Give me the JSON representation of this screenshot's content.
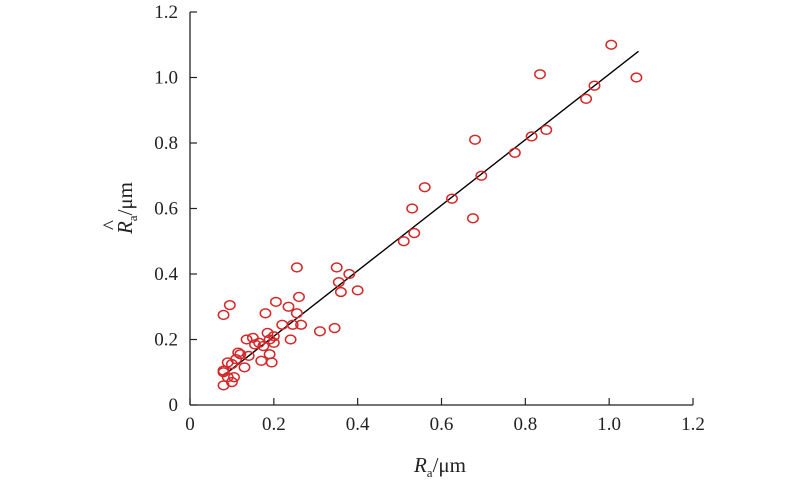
{
  "chart_data": {
    "type": "scatter",
    "xlabel": {
      "main": "R",
      "sub": "a",
      "unit": "/μm"
    },
    "ylabel": {
      "main": "R",
      "hat": "^",
      "sub": "a",
      "unit": "/μm"
    },
    "xlim": [
      0,
      1.2
    ],
    "ylim": [
      0,
      1.2
    ],
    "xticks": [
      "0",
      "0.2",
      "0.4",
      "0.6",
      "0.8",
      "1.0",
      "1.2"
    ],
    "yticks": [
      "0",
      "0.2",
      "0.4",
      "0.6",
      "0.8",
      "1.0",
      "1.2"
    ],
    "grid": false,
    "marker_color": "#d62728",
    "line_color": "#000000",
    "fit_line": {
      "x": [
        0.08,
        1.07
      ],
      "y": [
        0.09,
        1.08
      ]
    },
    "points": [
      [
        0.08,
        0.06
      ],
      [
        0.08,
        0.1
      ],
      [
        0.08,
        0.105
      ],
      [
        0.08,
        0.275
      ],
      [
        0.09,
        0.085
      ],
      [
        0.09,
        0.13
      ],
      [
        0.095,
        0.305
      ],
      [
        0.1,
        0.07
      ],
      [
        0.1,
        0.125
      ],
      [
        0.105,
        0.085
      ],
      [
        0.11,
        0.14
      ],
      [
        0.115,
        0.16
      ],
      [
        0.12,
        0.155
      ],
      [
        0.13,
        0.115
      ],
      [
        0.135,
        0.2
      ],
      [
        0.14,
        0.15
      ],
      [
        0.15,
        0.205
      ],
      [
        0.155,
        0.185
      ],
      [
        0.165,
        0.19
      ],
      [
        0.17,
        0.135
      ],
      [
        0.175,
        0.18
      ],
      [
        0.18,
        0.28
      ],
      [
        0.185,
        0.22
      ],
      [
        0.19,
        0.2
      ],
      [
        0.19,
        0.155
      ],
      [
        0.195,
        0.13
      ],
      [
        0.2,
        0.21
      ],
      [
        0.2,
        0.19
      ],
      [
        0.205,
        0.315
      ],
      [
        0.22,
        0.245
      ],
      [
        0.235,
        0.3
      ],
      [
        0.24,
        0.2
      ],
      [
        0.245,
        0.245
      ],
      [
        0.255,
        0.28
      ],
      [
        0.255,
        0.42
      ],
      [
        0.26,
        0.33
      ],
      [
        0.265,
        0.245
      ],
      [
        0.31,
        0.225
      ],
      [
        0.345,
        0.235
      ],
      [
        0.35,
        0.42
      ],
      [
        0.355,
        0.375
      ],
      [
        0.36,
        0.345
      ],
      [
        0.38,
        0.4
      ],
      [
        0.4,
        0.35
      ],
      [
        0.51,
        0.5
      ],
      [
        0.53,
        0.6
      ],
      [
        0.535,
        0.525
      ],
      [
        0.56,
        0.665
      ],
      [
        0.625,
        0.63
      ],
      [
        0.675,
        0.57
      ],
      [
        0.68,
        0.81
      ],
      [
        0.695,
        0.7
      ],
      [
        0.775,
        0.77
      ],
      [
        0.815,
        0.82
      ],
      [
        0.835,
        1.01
      ],
      [
        0.85,
        0.84
      ],
      [
        0.945,
        0.935
      ],
      [
        0.965,
        0.975
      ],
      [
        1.005,
        1.1
      ],
      [
        1.065,
        1.0
      ]
    ]
  }
}
